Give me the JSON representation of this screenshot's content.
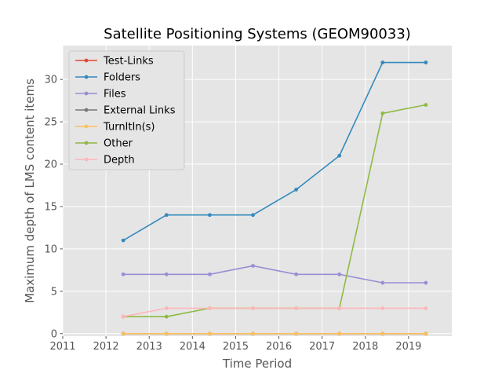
{
  "chart_data": {
    "type": "line",
    "title": "Satellite Positioning Systems (GEOM90033)",
    "xlabel": "Time Period",
    "ylabel": "Maximum depth of LMS content items",
    "xlim": [
      2011,
      2020
    ],
    "ylim": [
      -0.3,
      34
    ],
    "x_ticks": [
      2011,
      2012,
      2013,
      2014,
      2015,
      2016,
      2017,
      2018,
      2019
    ],
    "y_ticks": [
      0,
      5,
      10,
      15,
      20,
      25,
      30
    ],
    "x": [
      2012.4,
      2013.4,
      2014.4,
      2015.4,
      2016.4,
      2017.4,
      2018.4,
      2019.4
    ],
    "grid": true,
    "legend_position": "top-left",
    "series": [
      {
        "name": "Test-Links",
        "color": "#E24A33",
        "values": [
          0,
          0,
          0,
          0,
          0,
          0,
          0,
          0
        ]
      },
      {
        "name": "Folders",
        "color": "#348ABD",
        "values": [
          11,
          14,
          14,
          14,
          17,
          21,
          32,
          32
        ]
      },
      {
        "name": "Files",
        "color": "#988ED5",
        "values": [
          7,
          7,
          7,
          8,
          7,
          7,
          6,
          6
        ]
      },
      {
        "name": "External Links",
        "color": "#777777",
        "values": [
          0,
          0,
          0,
          0,
          0,
          0,
          0,
          0
        ]
      },
      {
        "name": "TurnItIn(s)",
        "color": "#FBC15E",
        "values": [
          0,
          0,
          0,
          0,
          0,
          0,
          0,
          0
        ]
      },
      {
        "name": "Other",
        "color": "#8EBA42",
        "values": [
          2,
          2,
          3,
          3,
          3,
          3,
          26,
          27
        ]
      },
      {
        "name": "Depth",
        "color": "#FFB5B8",
        "values": [
          2,
          3,
          3,
          3,
          3,
          3,
          3,
          3
        ]
      }
    ]
  }
}
